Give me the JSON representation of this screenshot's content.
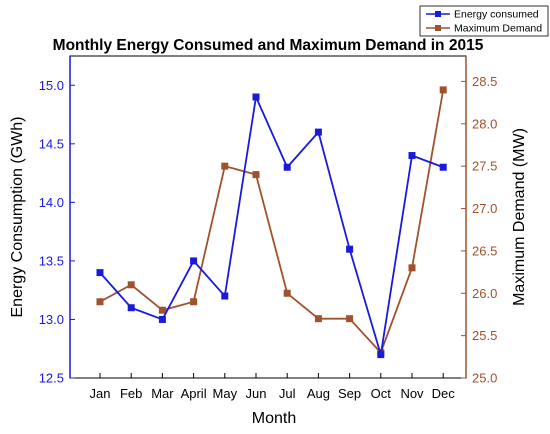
{
  "chart_data": {
    "type": "line",
    "title": "Monthly Energy Consumed and Maximum Demand in 2015",
    "xlabel": "Month",
    "categories": [
      "Jan",
      "Feb",
      "Mar",
      "April",
      "May",
      "Jun",
      "Jul",
      "Aug",
      "Sep",
      "Oct",
      "Nov",
      "Dec"
    ],
    "y_left": {
      "label": "Energy Consumption (GWh)",
      "ylim": [
        12.5,
        15.25
      ],
      "ticks": [
        "12.5",
        "13.0",
        "13.5",
        "14.0",
        "14.5",
        "15.0"
      ],
      "color": "#1a1adc"
    },
    "y_right": {
      "label": "Maximum Demand (MW)",
      "ylim": [
        25.0,
        28.8
      ],
      "ticks": [
        "25.0",
        "25.5",
        "26.0",
        "26.5",
        "27.0",
        "27.5",
        "28.0",
        "28.5"
      ],
      "color": "#a0522d"
    },
    "series": [
      {
        "name": "Energy consumed",
        "axis": "left",
        "color": "#1a1adc",
        "marker": "square",
        "values": [
          13.4,
          13.1,
          13.0,
          13.5,
          13.2,
          14.9,
          14.3,
          14.6,
          13.6,
          12.7,
          14.4,
          14.3
        ]
      },
      {
        "name": "Maximum Demand",
        "axis": "right",
        "color": "#a0522d",
        "marker": "square",
        "values": [
          25.9,
          26.1,
          25.8,
          25.9,
          27.5,
          27.4,
          26.0,
          25.7,
          25.7,
          25.3,
          26.3,
          28.4
        ]
      }
    ],
    "legend": "top-right",
    "grid": false
  }
}
